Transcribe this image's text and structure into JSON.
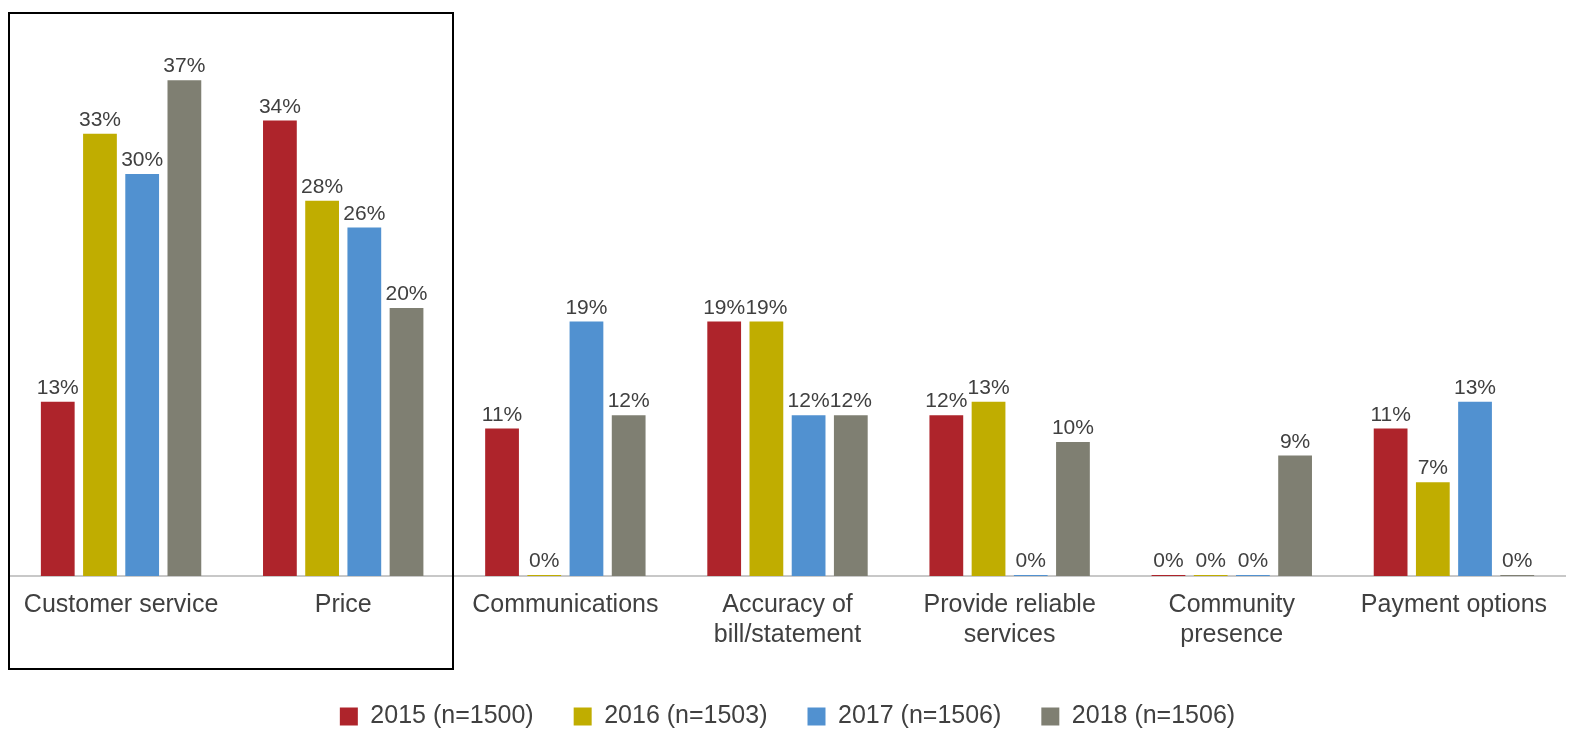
{
  "chart_data": {
    "type": "bar",
    "categories": [
      "Customer service",
      "Price",
      "Communications",
      "Accuracy of bill/statement",
      "Provide reliable services",
      "Community presence",
      "Payment options"
    ],
    "series": [
      {
        "name": "2015 (n=1500)",
        "color": "#ae242b",
        "values": [
          13,
          34,
          11,
          19,
          12,
          0,
          11
        ],
        "value_labels": [
          "13%",
          "34%",
          "11%",
          "19%",
          "12%",
          "0%",
          "11%"
        ]
      },
      {
        "name": "2016 (n=1503)",
        "color": "#c0ad00",
        "values": [
          33,
          28,
          0,
          19,
          13,
          0,
          7
        ],
        "value_labels": [
          "33%",
          "28%",
          "0%",
          "19%",
          "13%",
          "0%",
          "7%"
        ]
      },
      {
        "name": "2017 (n=1506)",
        "color": "#5191d0",
        "values": [
          30,
          26,
          19,
          12,
          0,
          0,
          13
        ],
        "value_labels": [
          "30%",
          "26%",
          "19%",
          "12%",
          "0%",
          "0%",
          "13%"
        ]
      },
      {
        "name": "2018 (n=1506)",
        "color": "#7f7f72",
        "values": [
          37,
          20,
          12,
          12,
          10,
          9,
          0
        ],
        "value_labels": [
          "37%",
          "20%",
          "12%",
          "12%",
          "10%",
          "9%",
          "0%"
        ]
      }
    ],
    "legend": "bottom",
    "grid": false
  }
}
